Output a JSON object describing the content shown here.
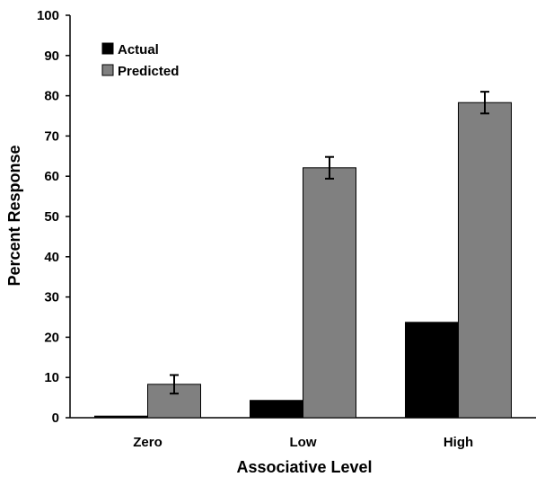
{
  "chart_data": {
    "type": "bar",
    "title": "",
    "xlabel": "Associative Level",
    "ylabel": "Percent  Response",
    "categories": [
      "Zero",
      "Low",
      "High"
    ],
    "ylim": [
      0,
      100
    ],
    "yticks": [
      0,
      10,
      20,
      30,
      40,
      50,
      60,
      70,
      80,
      90,
      100
    ],
    "grid": false,
    "legend_position": "top-left",
    "series": [
      {
        "name": "Actual",
        "color": "#000000",
        "values": [
          0.4,
          4.3,
          23.7
        ],
        "errors": null
      },
      {
        "name": "Predicted",
        "color": "#808080",
        "values": [
          8.3,
          62.1,
          78.3
        ],
        "errors": [
          2.3,
          2.7,
          2.7
        ]
      }
    ]
  }
}
